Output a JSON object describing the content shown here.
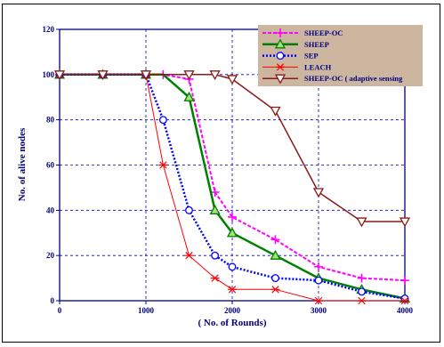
{
  "chart_data": {
    "type": "line",
    "xlabel": "( No. of Rounds)",
    "ylabel": "No. of alive nodes",
    "xlim": [
      0,
      4000
    ],
    "ylim": [
      0,
      120
    ],
    "xticks": [
      0,
      1000,
      2000,
      3000,
      4000
    ],
    "yticks": [
      0,
      20,
      40,
      60,
      80,
      100,
      120
    ],
    "grid": true,
    "legend_position": "top-right",
    "colors": {
      "axis": "#000080",
      "grid": "#0000cc",
      "legend_bg": "#cdb6a0"
    },
    "series": [
      {
        "name": "SHEEP-OC",
        "color": "#ff00ff",
        "marker": "plus",
        "dash": "4,2",
        "width": 2,
        "x": [
          0,
          500,
          1000,
          1200,
          1500,
          1800,
          2000,
          2500,
          3000,
          3500,
          4000
        ],
        "y": [
          100,
          100,
          100,
          100,
          98,
          48,
          37,
          27,
          15,
          10,
          9
        ]
      },
      {
        "name": "SHEEP",
        "color": "#008000",
        "marker": "triangle",
        "dash": "",
        "width": 2.5,
        "x": [
          0,
          500,
          1000,
          1200,
          1500,
          1800,
          2000,
          2500,
          3000,
          3500,
          4000
        ],
        "y": [
          100,
          100,
          100,
          100,
          90,
          40,
          30,
          20,
          10,
          5,
          1
        ]
      },
      {
        "name": "SEP",
        "color": "#0000ff",
        "marker": "circle",
        "dash": "2,2",
        "width": 2.5,
        "x": [
          0,
          500,
          1000,
          1200,
          1500,
          1800,
          2000,
          2500,
          3000,
          3500,
          4000
        ],
        "y": [
          100,
          100,
          100,
          80,
          40,
          20,
          15,
          10,
          9,
          4,
          1
        ]
      },
      {
        "name": "LEACH",
        "color": "#ff0000",
        "marker": "asterisk",
        "dash": "",
        "width": 1,
        "x": [
          0,
          500,
          1000,
          1200,
          1500,
          1800,
          2000,
          2500,
          3000,
          3500,
          4000
        ],
        "y": [
          100,
          100,
          100,
          60,
          20,
          10,
          5,
          5,
          0,
          0,
          0
        ]
      },
      {
        "name": "SHEEP-OC ( adaptive sensing",
        "color": "#8b1a1a",
        "marker": "triangle-down",
        "dash": "",
        "width": 1.5,
        "x": [
          0,
          500,
          1000,
          1200,
          1500,
          1800,
          2000,
          2500,
          3000,
          3500,
          4000
        ],
        "y": [
          100,
          100,
          100,
          100,
          100,
          100,
          98,
          84,
          48,
          35,
          35
        ]
      }
    ]
  }
}
